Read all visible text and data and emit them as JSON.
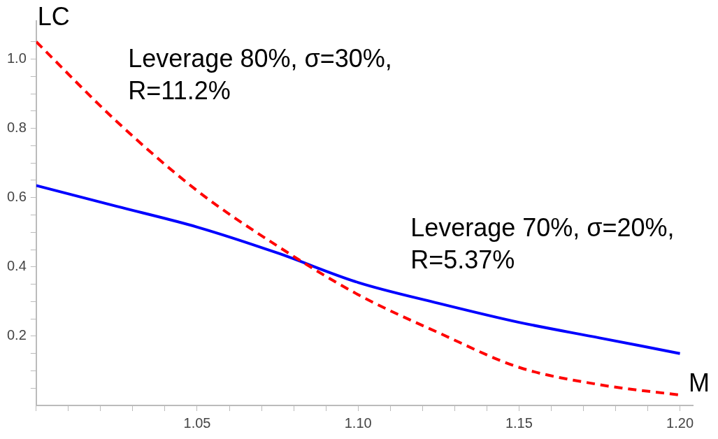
{
  "chart_data": {
    "type": "line",
    "xlabel": "M",
    "ylabel": "LC",
    "xlim": [
      1.0,
      1.204
    ],
    "ylim": [
      0,
      1.11
    ],
    "xticks": [
      {
        "value": 1.0,
        "label": null
      },
      {
        "value": 1.01,
        "label": null
      },
      {
        "value": 1.02,
        "label": null
      },
      {
        "value": 1.03,
        "label": null
      },
      {
        "value": 1.04,
        "label": null
      },
      {
        "value": 1.05,
        "label": "1.05"
      },
      {
        "value": 1.06,
        "label": null
      },
      {
        "value": 1.07,
        "label": null
      },
      {
        "value": 1.08,
        "label": null
      },
      {
        "value": 1.09,
        "label": null
      },
      {
        "value": 1.1,
        "label": "1.10"
      },
      {
        "value": 1.11,
        "label": null
      },
      {
        "value": 1.12,
        "label": null
      },
      {
        "value": 1.13,
        "label": null
      },
      {
        "value": 1.14,
        "label": null
      },
      {
        "value": 1.15,
        "label": "1.15"
      },
      {
        "value": 1.16,
        "label": null
      },
      {
        "value": 1.17,
        "label": null
      },
      {
        "value": 1.18,
        "label": null
      },
      {
        "value": 1.19,
        "label": null
      },
      {
        "value": 1.2,
        "label": "1.20"
      }
    ],
    "yticks": [
      {
        "value": 0.05,
        "label": null
      },
      {
        "value": 0.1,
        "label": null
      },
      {
        "value": 0.15,
        "label": null
      },
      {
        "value": 0.2,
        "label": "0.2"
      },
      {
        "value": 0.25,
        "label": null
      },
      {
        "value": 0.3,
        "label": null
      },
      {
        "value": 0.35,
        "label": null
      },
      {
        "value": 0.4,
        "label": "0.4"
      },
      {
        "value": 0.45,
        "label": null
      },
      {
        "value": 0.5,
        "label": null
      },
      {
        "value": 0.55,
        "label": null
      },
      {
        "value": 0.6,
        "label": "0.6"
      },
      {
        "value": 0.65,
        "label": null
      },
      {
        "value": 0.7,
        "label": null
      },
      {
        "value": 0.75,
        "label": null
      },
      {
        "value": 0.8,
        "label": "0.8"
      },
      {
        "value": 0.85,
        "label": null
      },
      {
        "value": 0.9,
        "label": null
      },
      {
        "value": 0.95,
        "label": null
      },
      {
        "value": 1.0,
        "label": "1.0"
      },
      {
        "value": 1.05,
        "label": null
      }
    ],
    "grid": false,
    "legend": false,
    "marker": "none",
    "series": [
      {
        "name": "Leverage 80%, σ=30%, R=11.2%",
        "color": "#ff0000",
        "line_style": "dashed",
        "x": [
          1.0,
          1.025,
          1.05,
          1.075,
          1.1,
          1.125,
          1.15,
          1.175,
          1.2
        ],
        "values": [
          1.05,
          0.82,
          0.62,
          0.46,
          0.32,
          0.21,
          0.11,
          0.06,
          0.03
        ]
      },
      {
        "name": "Leverage 70%, σ=20%, R=5.37%",
        "color": "#0000ff",
        "line_style": "solid",
        "x": [
          1.0,
          1.025,
          1.05,
          1.075,
          1.1,
          1.125,
          1.15,
          1.175,
          1.2
        ],
        "values": [
          0.635,
          0.575,
          0.515,
          0.44,
          0.355,
          0.295,
          0.24,
          0.195,
          0.15
        ]
      }
    ]
  }
}
